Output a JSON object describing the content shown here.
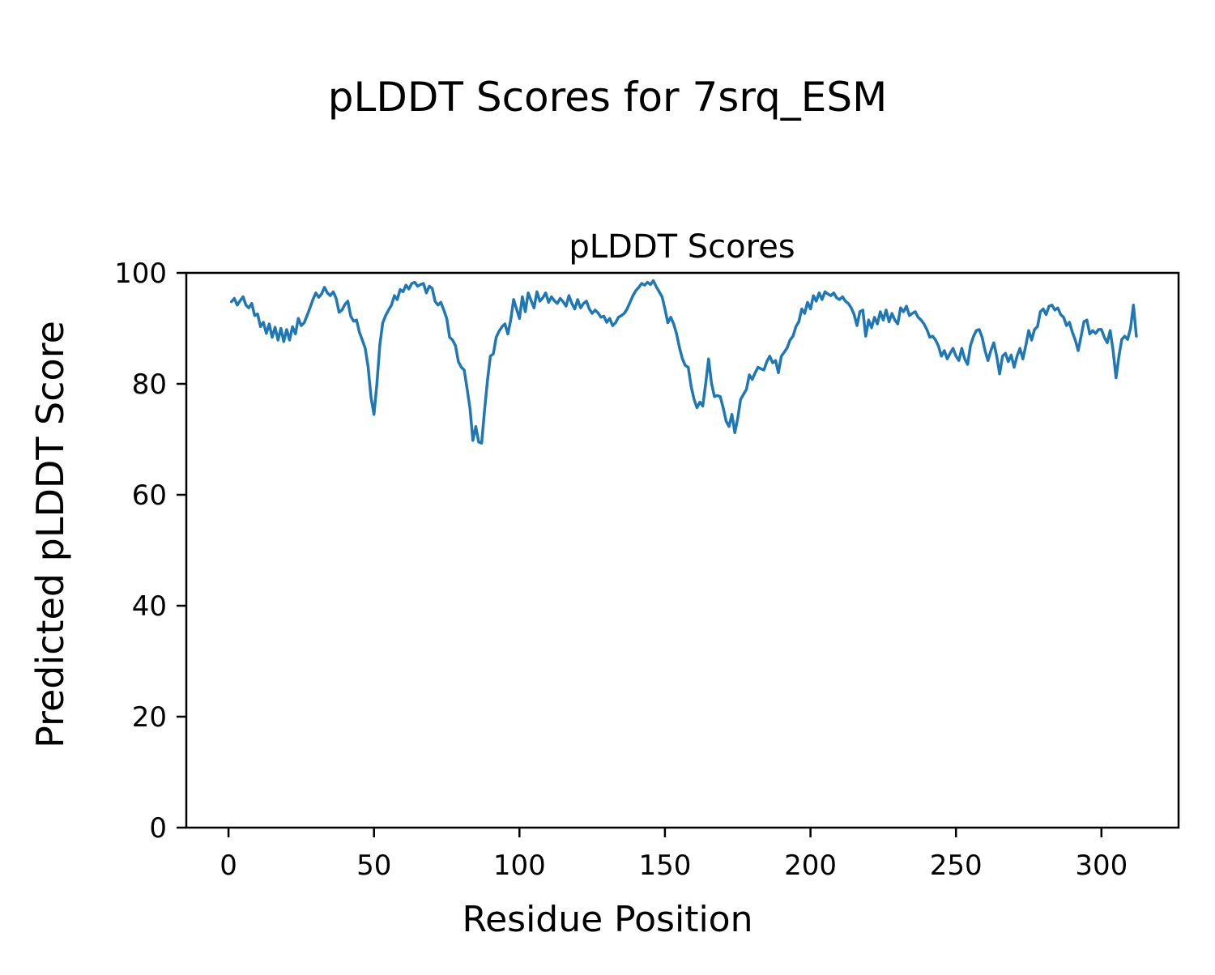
{
  "figure": {
    "suptitle": "pLDDT Scores for 7srq_ESM",
    "background": "#ffffff"
  },
  "chart_data": {
    "type": "line",
    "title": "pLDDT Scores",
    "xlabel": "Residue Position",
    "ylabel": "Predicted pLDDT Score",
    "xlim": [
      -14.5,
      326.5
    ],
    "ylim": [
      0,
      100
    ],
    "xticks": [
      0,
      50,
      100,
      150,
      200,
      250,
      300
    ],
    "yticks": [
      0,
      20,
      40,
      60,
      80,
      100
    ],
    "grid": false,
    "legend": "none",
    "line_color": "#1f77b4",
    "axis_color": "#000000",
    "x_start": 1,
    "series": [
      {
        "name": "pLDDT Scores",
        "values": [
          94.8,
          95.4,
          94.2,
          95.0,
          95.7,
          94.2,
          93.7,
          94.5,
          92.3,
          92.6,
          90.3,
          91.1,
          89.1,
          90.8,
          88.4,
          90.2,
          87.9,
          90.0,
          87.6,
          89.8,
          87.9,
          90.3,
          89.0,
          91.8,
          90.5,
          91.0,
          92.3,
          93.7,
          95.2,
          96.4,
          95.6,
          96.2,
          97.4,
          96.4,
          95.9,
          96.6,
          95.4,
          92.9,
          93.3,
          94.3,
          94.9,
          92.2,
          91.3,
          91.5,
          89.3,
          87.9,
          86.4,
          83.0,
          77.5,
          74.5,
          80.0,
          87.0,
          91.0,
          92.3,
          93.3,
          94.2,
          95.9,
          95.2,
          97.0,
          96.6,
          97.8,
          97.1,
          98.1,
          98.3,
          97.6,
          97.9,
          98.1,
          96.4,
          97.6,
          97.2,
          94.9,
          94.2,
          94.7,
          93.3,
          91.8,
          88.4,
          87.9,
          86.9,
          84.0,
          83.0,
          82.5,
          79.1,
          75.5,
          69.8,
          72.3,
          69.5,
          69.3,
          75.2,
          80.6,
          85.0,
          85.4,
          88.4,
          89.5,
          90.3,
          90.8,
          89.0,
          91.5,
          95.2,
          93.5,
          91.8,
          95.7,
          93.0,
          96.4,
          95.0,
          93.7,
          96.6,
          94.9,
          95.5,
          96.4,
          94.7,
          95.7,
          95.0,
          94.5,
          95.4,
          94.8,
          94.0,
          95.9,
          94.5,
          93.5,
          95.2,
          93.7,
          94.5,
          94.9,
          93.5,
          92.7,
          93.3,
          92.8,
          92.0,
          92.2,
          91.1,
          91.8,
          90.5,
          91.0,
          92.0,
          92.3,
          92.7,
          93.5,
          94.7,
          95.9,
          96.8,
          97.4,
          98.1,
          97.8,
          98.3,
          97.9,
          98.6,
          97.5,
          96.6,
          95.7,
          93.5,
          91.0,
          92.0,
          90.8,
          89.0,
          86.5,
          84.5,
          83.3,
          83.0,
          79.5,
          77.2,
          75.7,
          76.7,
          76.0,
          80.0,
          84.5,
          80.1,
          77.7,
          77.9,
          77.7,
          75.7,
          73.3,
          72.3,
          74.5,
          71.2,
          73.8,
          77.2,
          78.1,
          79.0,
          81.6,
          80.8,
          82.0,
          83.0,
          82.7,
          82.5,
          84.0,
          85.0,
          83.8,
          84.2,
          82.0,
          85.0,
          85.7,
          86.5,
          87.9,
          88.6,
          90.3,
          91.2,
          93.5,
          92.7,
          94.7,
          93.5,
          95.9,
          94.9,
          96.4,
          95.2,
          96.6,
          96.2,
          95.9,
          96.4,
          95.5,
          95.2,
          95.7,
          94.9,
          94.5,
          93.7,
          92.5,
          90.5,
          93.0,
          93.3,
          88.6,
          91.5,
          90.1,
          92.0,
          90.8,
          93.0,
          91.5,
          93.3,
          91.2,
          92.7,
          91.5,
          90.8,
          93.7,
          93.0,
          94.0,
          92.3,
          92.7,
          93.0,
          92.0,
          91.5,
          90.8,
          89.8,
          88.4,
          88.6,
          87.9,
          86.8,
          85.0,
          86.0,
          84.5,
          85.5,
          86.4,
          85.0,
          84.2,
          86.4,
          84.5,
          83.5,
          86.9,
          88.5,
          89.6,
          89.8,
          88.4,
          86.0,
          84.2,
          86.0,
          87.4,
          85.0,
          81.8,
          85.0,
          85.5,
          84.0,
          85.2,
          83.0,
          85.0,
          86.4,
          84.5,
          86.9,
          89.6,
          87.9,
          89.8,
          90.3,
          93.0,
          93.5,
          92.5,
          94.0,
          94.2,
          93.3,
          93.7,
          92.5,
          92.0,
          90.5,
          91.1,
          89.3,
          87.9,
          86.0,
          88.6,
          91.2,
          91.5,
          89.0,
          89.6,
          89.1,
          89.8,
          89.8,
          88.4,
          87.4,
          89.6,
          86.0,
          81.1,
          85.0,
          88.0,
          88.6,
          88.0,
          90.0,
          94.2,
          88.6
        ]
      }
    ]
  }
}
